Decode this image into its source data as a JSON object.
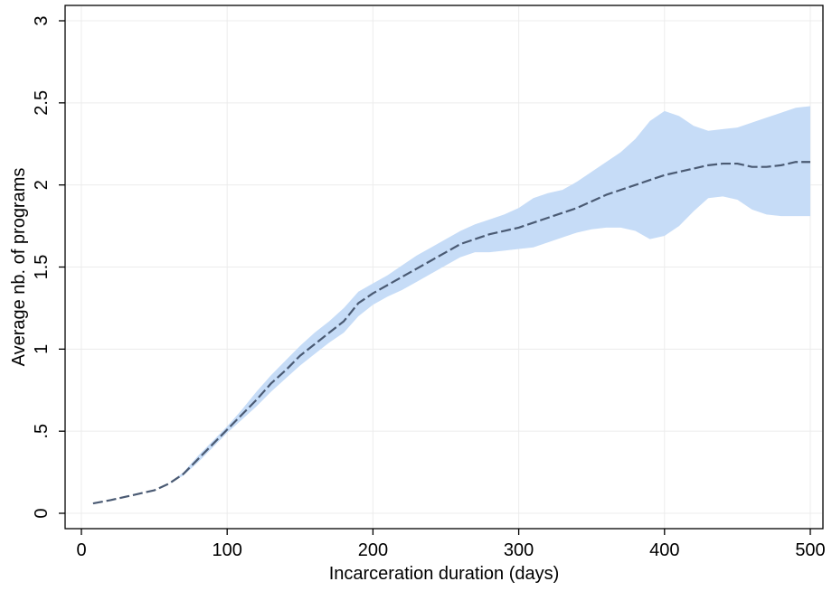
{
  "chart_data": {
    "type": "line",
    "title": "",
    "xlabel": "Incarceration duration (days)",
    "ylabel": "Average nb. of programs",
    "xlim": [
      0,
      500
    ],
    "ylim": [
      0,
      3
    ],
    "xticks": [
      {
        "value": 0,
        "label": "0"
      },
      {
        "value": 100,
        "label": "100"
      },
      {
        "value": 200,
        "label": "200"
      },
      {
        "value": 300,
        "label": "300"
      },
      {
        "value": 400,
        "label": "400"
      },
      {
        "value": 500,
        "label": "500"
      }
    ],
    "yticks": [
      {
        "value": 0,
        "label": "0"
      },
      {
        "value": 0.5,
        "label": ".5"
      },
      {
        "value": 1,
        "label": "1"
      },
      {
        "value": 1.5,
        "label": "1.5"
      },
      {
        "value": 2,
        "label": "2"
      },
      {
        "value": 2.5,
        "label": "2.5"
      },
      {
        "value": 3,
        "label": "3"
      }
    ],
    "grid": true,
    "colors": {
      "line": "#4a5a73",
      "band": "#c6dcf7",
      "grid": "#ececec",
      "axis": "#000000"
    },
    "series": [
      {
        "x": [
          8,
          20,
          30,
          40,
          50,
          60,
          70,
          80,
          90,
          100,
          110,
          120,
          130,
          140,
          150,
          160,
          170,
          180,
          190,
          200,
          210,
          220,
          230,
          240,
          250,
          260,
          270,
          280,
          290,
          300,
          310,
          320,
          330,
          340,
          350,
          360,
          370,
          380,
          390,
          400,
          410,
          420,
          430,
          440,
          450,
          460,
          470,
          480,
          490,
          500
        ],
        "y": [
          0.06,
          0.08,
          0.1,
          0.12,
          0.14,
          0.18,
          0.24,
          0.33,
          0.42,
          0.51,
          0.6,
          0.69,
          0.79,
          0.87,
          0.96,
          1.03,
          1.1,
          1.17,
          1.28,
          1.34,
          1.39,
          1.44,
          1.49,
          1.54,
          1.59,
          1.64,
          1.67,
          1.7,
          1.72,
          1.74,
          1.77,
          1.8,
          1.83,
          1.86,
          1.9,
          1.94,
          1.97,
          2.0,
          2.03,
          2.06,
          2.08,
          2.1,
          2.12,
          2.13,
          2.13,
          2.11,
          2.11,
          2.12,
          2.14,
          2.14
        ],
        "lower": [
          0.06,
          0.08,
          0.1,
          0.12,
          0.14,
          0.18,
          0.23,
          0.31,
          0.4,
          0.49,
          0.57,
          0.65,
          0.74,
          0.82,
          0.9,
          0.97,
          1.04,
          1.1,
          1.2,
          1.27,
          1.32,
          1.36,
          1.41,
          1.46,
          1.51,
          1.56,
          1.59,
          1.59,
          1.6,
          1.61,
          1.62,
          1.65,
          1.68,
          1.71,
          1.73,
          1.74,
          1.74,
          1.72,
          1.67,
          1.69,
          1.75,
          1.84,
          1.92,
          1.93,
          1.91,
          1.85,
          1.82,
          1.81,
          1.81,
          1.81
        ],
        "upper": [
          0.06,
          0.08,
          0.1,
          0.12,
          0.14,
          0.18,
          0.25,
          0.35,
          0.44,
          0.53,
          0.63,
          0.74,
          0.84,
          0.93,
          1.02,
          1.1,
          1.17,
          1.25,
          1.35,
          1.4,
          1.45,
          1.51,
          1.57,
          1.62,
          1.67,
          1.72,
          1.76,
          1.79,
          1.82,
          1.86,
          1.92,
          1.95,
          1.97,
          2.02,
          2.08,
          2.14,
          2.2,
          2.28,
          2.39,
          2.45,
          2.42,
          2.36,
          2.33,
          2.34,
          2.35,
          2.38,
          2.41,
          2.44,
          2.47,
          2.48
        ]
      }
    ]
  }
}
